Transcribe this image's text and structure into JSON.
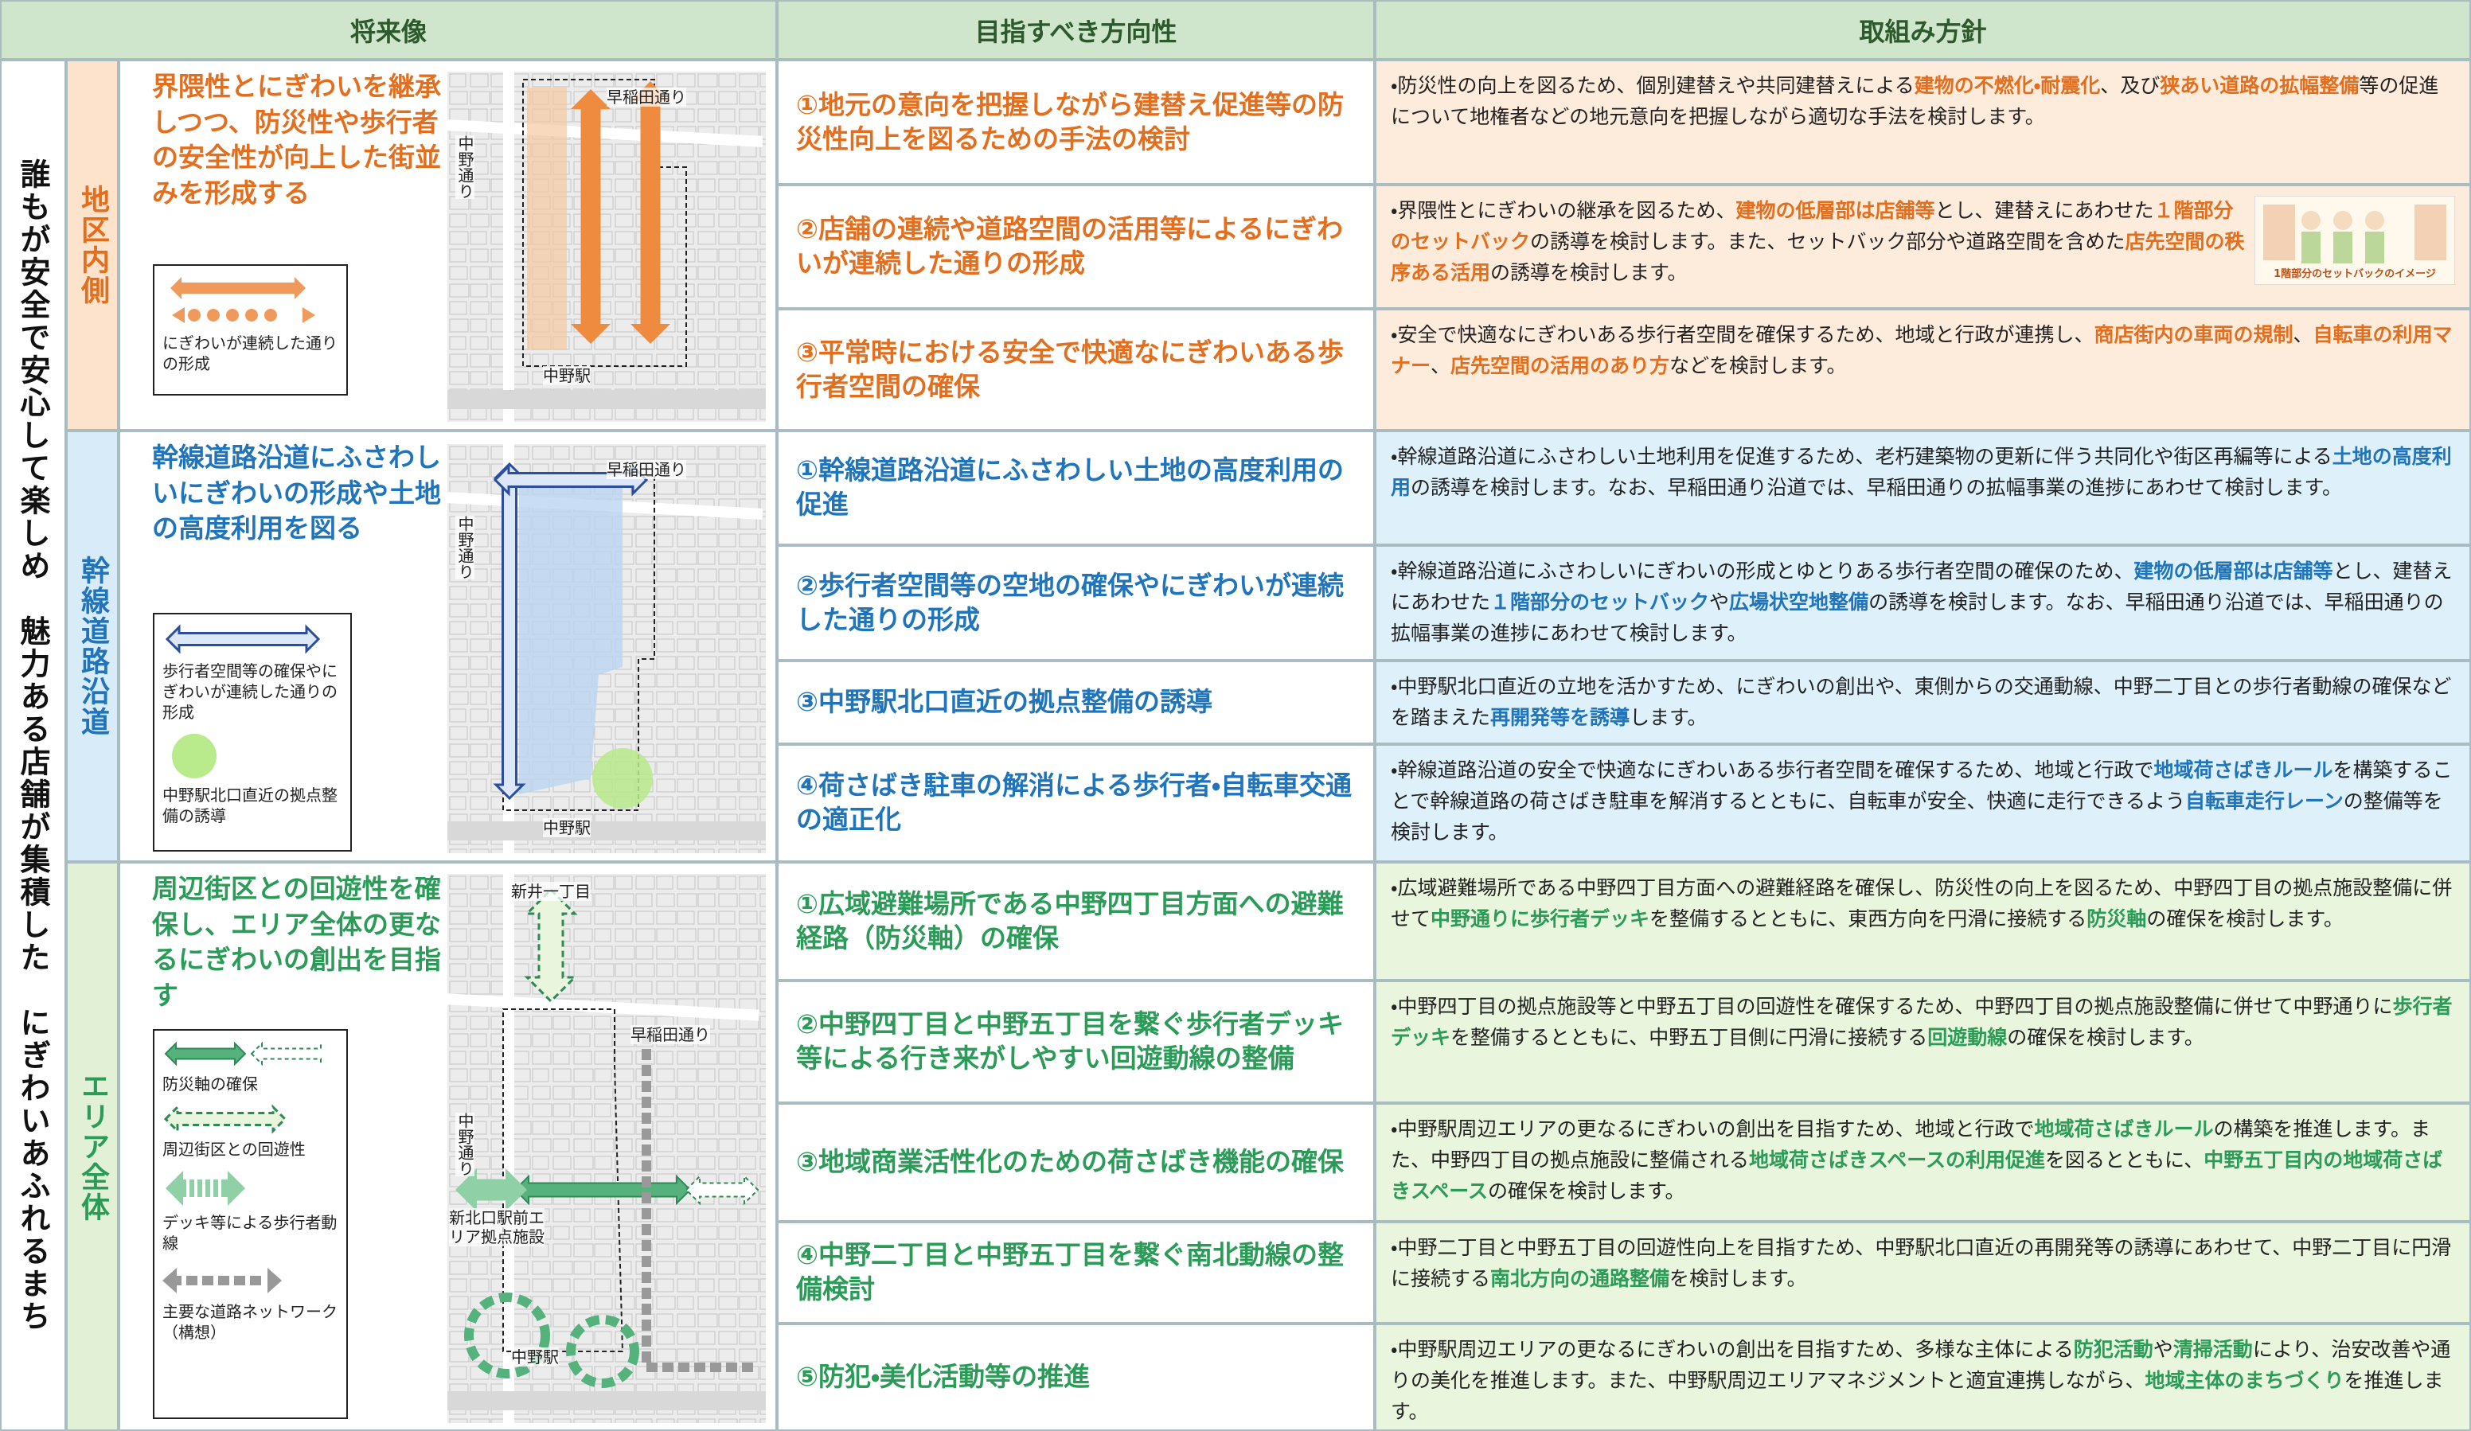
{
  "header": {
    "vision": "将来像",
    "direction": "目指すべき方向性",
    "policy": "取組み方針"
  },
  "main_title": "誰もが安全で安心して楽しめ　魅力ある店舗が集積した　にぎわいあふれるまち",
  "sections": [
    {
      "label": "地区内側",
      "vision": "界隈性とにぎわいを継承しつつ、防災性や歩行者の安全性が向上した街並みを形成する",
      "legend": [
        "にぎわいが連続した通りの形成"
      ],
      "map_labels": [
        "早稲田通り",
        "中野通り",
        "中野駅"
      ],
      "items": [
        {
          "direction": "①地元の意向を把握しながら建替え促進等の防災性向上を図るための手法の検討",
          "policy": [
            "・防災性の向上を図るため、個別建替えや共同建替えによる",
            "建物の不燃化・耐震化",
            "、及び",
            "狭あい道路の拡幅整備",
            "等の促進について地権者などの地元意向を把握しながら適切な手法を検討します。"
          ]
        },
        {
          "direction": "②店舗の連続や道路空間の活用等によるにぎわいが連続した通りの形成",
          "policy": [
            "・界隈性とにぎわいの継承を図るため、",
            "建物の低層部は店舗等",
            "とし、建替えにあわせた",
            "１階部分のセットバック",
            "の誘導を検討します。また、セットバック部分や道路空間を含めた",
            "店先空間の秩序ある活用",
            "の誘導を検討します。"
          ],
          "image_caption": "1階部分のセットバックのイメージ"
        },
        {
          "direction": "③平常時における安全で快適なにぎわいある歩行者空間の確保",
          "policy": [
            "・安全で快適なにぎわいある歩行者空間を確保するため、地域と行政が連携し、",
            "商店街内の車両の規制",
            "、",
            "自転車の利用マナー",
            "、",
            "店先空間の活用のあり方",
            "などを検討します。"
          ]
        }
      ]
    },
    {
      "label": "幹線道路沿道",
      "vision": "幹線道路沿道にふさわしいにぎわいの形成や土地の高度利用を図る",
      "legend": [
        "歩行者空間等の確保やにぎわいが連続した通りの形成",
        "中野駅北口直近の拠点整備の誘導"
      ],
      "map_labels": [
        "早稲田通り",
        "中野通り",
        "中野駅"
      ],
      "items": [
        {
          "direction": "①幹線道路沿道にふさわしい土地の高度利用の促進",
          "policy": [
            "・幹線道路沿道にふさわしい土地利用を促進するため、老朽建築物の更新に伴う共同化や街区再編等による",
            "土地の高度利用",
            "の誘導を検討します。なお、早稲田通り沿道では、早稲田通りの拡幅事業の進捗にあわせて検討します。"
          ]
        },
        {
          "direction": "②歩行者空間等の空地の確保やにぎわいが連続した通りの形成",
          "policy": [
            "・幹線道路沿道にふさわしいにぎわいの形成とゆとりある歩行者空間の確保のため、",
            "建物の低層部は店舗等",
            "とし、建替えにあわせた",
            "１階部分のセットバック",
            "や",
            "広場状空地整備",
            "の誘導を検討します。なお、早稲田通り沿道では、早稲田通りの拡幅事業の進捗にあわせて検討します。"
          ]
        },
        {
          "direction": "③中野駅北口直近の拠点整備の誘導",
          "policy": [
            "・中野駅北口直近の立地を活かすため、にぎわいの創出や、東側からの交通動線、中野二丁目との歩行者動線の確保などを踏まえた",
            "再開発等を誘導",
            "します。"
          ]
        },
        {
          "direction": "④荷さばき駐車の解消による歩行者・自転車交通の適正化",
          "policy": [
            "・幹線道路沿道の安全で快適なにぎわいある歩行者空間を確保するため、地域と行政で",
            "地域荷さばきルール",
            "を構築することで幹線道路の荷さばき駐車を解消するとともに、自転車が安全、快適に走行できるよう",
            "自転車走行レーン",
            "の整備等を検討します。"
          ]
        }
      ]
    },
    {
      "label": "エリア全体",
      "vision": "周辺街区との回遊性を確保し、エリア全体の更なるにぎわいの創出を目指す",
      "legend": [
        "防災軸の確保",
        "周辺街区との回遊性",
        "デッキ等による歩行者動線",
        "主要な道路ネットワーク（構想）"
      ],
      "map_labels": [
        "新井一丁目",
        "早稲田通り",
        "中野通り",
        "新北口駅前エリア拠点施設",
        "中野駅"
      ],
      "items": [
        {
          "direction": "①広域避難場所である中野四丁目方面への避難経路（防災軸）の確保",
          "policy": [
            "・広域避難場所である中野四丁目方面への避難経路を確保し、防災性の向上を図るため、中野四丁目の拠点施設整備に併せて",
            "中野通りに歩行者デッキ",
            "を整備するとともに、東西方向を円滑に接続する",
            "防災軸",
            "の確保を検討します。"
          ]
        },
        {
          "direction": "②中野四丁目と中野五丁目を繋ぐ歩行者デッキ等による行き来がしやすい回遊動線の整備",
          "policy": [
            "・中野四丁目の拠点施設等と中野五丁目の回遊性を確保するため、中野四丁目の拠点施設整備に併せて中野通りに",
            "歩行者デッキ",
            "を整備するとともに、中野五丁目側に円滑に接続する",
            "回遊動線",
            "の確保を検討します。"
          ]
        },
        {
          "direction": "③地域商業活性化のための荷さばき機能の確保",
          "policy": [
            "・中野駅周辺エリアの更なるにぎわいの創出を目指すため、地域と行政で",
            "地域荷さばきルール",
            "の構築を推進します。また、中野四丁目の拠点施設に整備される",
            "地域荷さばきスペースの利用促進",
            "を図るとともに、",
            "中野五丁目内の地域荷さばきスペース",
            "の確保を検討します。"
          ]
        },
        {
          "direction": "④中野二丁目と中野五丁目を繋ぐ南北動線の整備検討",
          "policy": [
            "・中野二丁目と中野五丁目の回遊性向上を目指すため、中野駅北口直近の再開発等の誘導にあわせて、中野二丁目に円滑に接続する",
            "南北方向の通路整備",
            "を検討します。"
          ]
        },
        {
          "direction": "⑤防犯・美化活動等の推進",
          "policy": [
            "・中野駅周辺エリアの更なるにぎわいの創出を目指すため、多様な主体による",
            "防犯活動",
            "や",
            "清掃活動",
            "により、治安改善や通りの美化を推進します。また、中野駅周辺エリアマネジメントと適宜連携しながら、",
            "地域主体のまちづくり",
            "を推進します。"
          ]
        }
      ]
    }
  ]
}
